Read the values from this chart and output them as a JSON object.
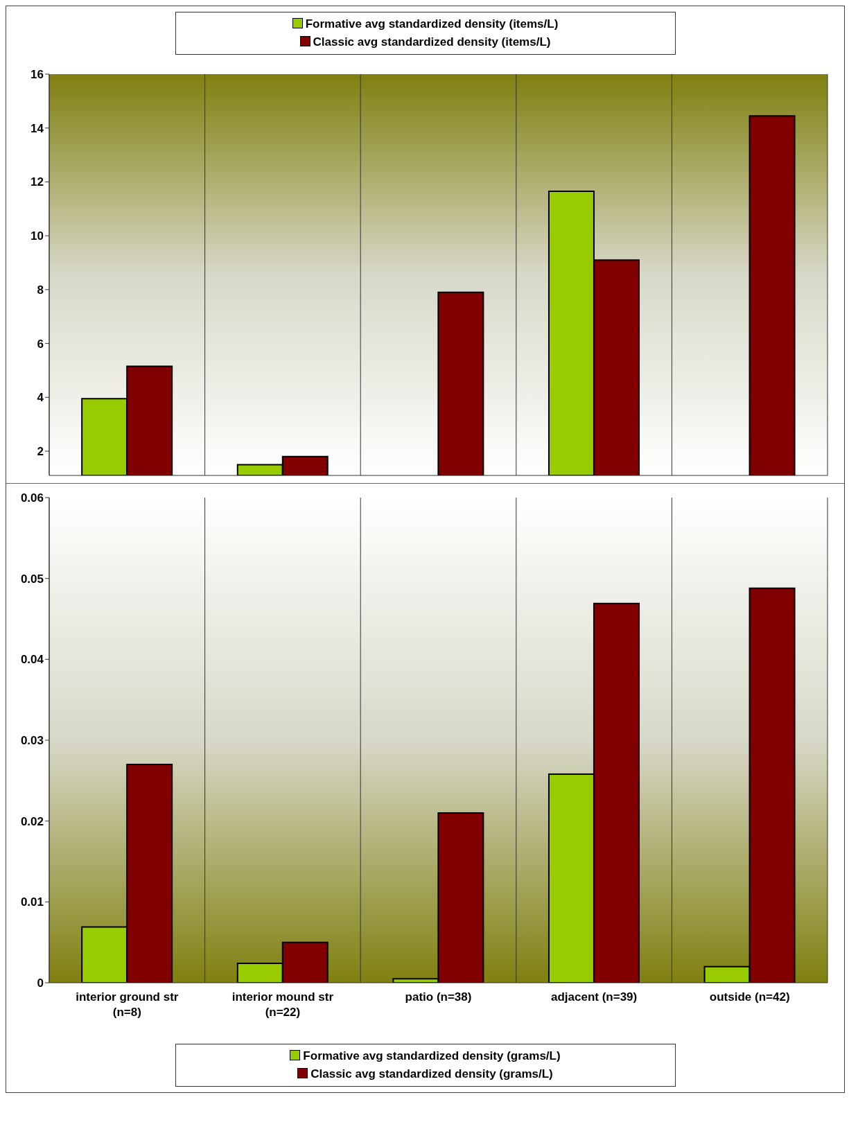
{
  "chart_data": [
    {
      "type": "bar",
      "categories": [
        null,
        null,
        null,
        null,
        null
      ],
      "series": [
        {
          "name": "Formative avg standardized density (items/L)",
          "color": "#99cc00",
          "values": [
            3.95,
            1.5,
            null,
            11.65,
            null
          ]
        },
        {
          "name": "Classic avg standardized density (items/L)",
          "color": "#800000",
          "values": [
            5.15,
            1.8,
            7.9,
            9.1,
            14.45
          ]
        }
      ],
      "ylim": [
        1.1,
        16
      ],
      "yticks": [
        2,
        4,
        6,
        8,
        10,
        12,
        14,
        16
      ],
      "grid": "x",
      "legend": "top"
    },
    {
      "type": "bar",
      "categories": [
        "interior ground str (n=8)",
        "interior mound str (n=22)",
        "patio (n=38)",
        "adjacent (n=39)",
        "outside (n=42)"
      ],
      "series": [
        {
          "name": "Formative avg standardized density (grams/L)",
          "color": "#99cc00",
          "values": [
            0.0069,
            0.0024,
            0.0005,
            0.0258,
            0.002
          ]
        },
        {
          "name": "Classic avg standardized density (grams/L)",
          "color": "#800000",
          "values": [
            0.027,
            0.005,
            0.021,
            0.0469,
            0.0488
          ]
        }
      ],
      "ylim": [
        0,
        0.06
      ],
      "yticks": [
        0,
        0.01,
        0.02,
        0.03,
        0.04,
        0.05,
        0.06
      ],
      "grid": "x",
      "legend": "bottom"
    }
  ]
}
